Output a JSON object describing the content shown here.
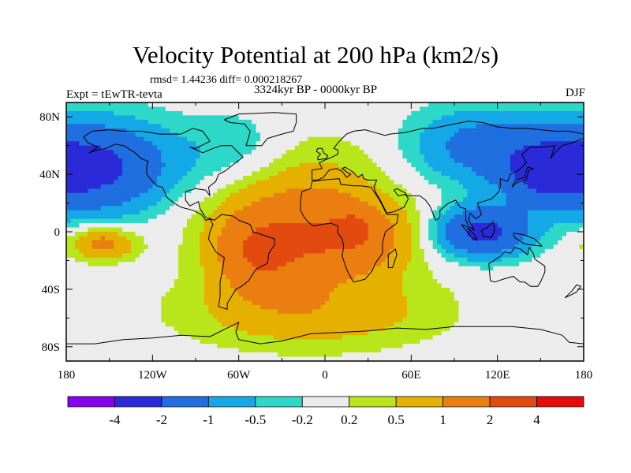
{
  "title": "Velocity Potential at 200 hPa (km2/s)",
  "stats": "rmsd= 1.44236 diff= 0.000218267",
  "period": "3324kyr BP - 0000kyr BP",
  "experiment": "Expt = tEwTR-tevta",
  "season": "DJF",
  "map": {
    "lon_range": [
      -180,
      180
    ],
    "lat_range": [
      -90,
      90
    ],
    "lat_ticks": [
      {
        "lat": 80,
        "label": "80N"
      },
      {
        "lat": 40,
        "label": "40N"
      },
      {
        "lat": 0,
        "label": "0"
      },
      {
        "lat": -40,
        "label": "40S"
      },
      {
        "lat": -80,
        "label": "80S"
      }
    ],
    "lon_ticks": [
      {
        "lon": -180,
        "label": "180"
      },
      {
        "lon": -120,
        "label": "120W"
      },
      {
        "lon": -60,
        "label": "60W"
      },
      {
        "lon": 0,
        "label": "0"
      },
      {
        "lon": 60,
        "label": "60E"
      },
      {
        "lon": 120,
        "label": "120E"
      },
      {
        "lon": 180,
        "label": "180"
      }
    ],
    "field_centers": [
      {
        "lon": -165,
        "lat": 45,
        "sx": 40,
        "sy": 22,
        "amp": -2.4
      },
      {
        "lon": 105,
        "lat": 60,
        "sx": 32,
        "sy": 18,
        "amp": -1.2
      },
      {
        "lon": 155,
        "lat": 42,
        "sx": 22,
        "sy": 14,
        "amp": -1.6
      },
      {
        "lon": 110,
        "lat": 0,
        "sx": 22,
        "sy": 12,
        "amp": -2.3
      },
      {
        "lon": -60,
        "lat": 55,
        "sx": 28,
        "sy": 20,
        "amp": -0.6
      },
      {
        "lon": -155,
        "lat": -8,
        "sx": 16,
        "sy": 8,
        "amp": 1.3
      },
      {
        "lon": -25,
        "lat": 20,
        "sx": 45,
        "sy": 30,
        "amp": 1.0
      },
      {
        "lon": 15,
        "lat": -5,
        "sx": 30,
        "sy": 18,
        "amp": 1.6
      },
      {
        "lon": -45,
        "lat": -15,
        "sx": 22,
        "sy": 18,
        "amp": 1.7
      },
      {
        "lon": 20,
        "lat": 2,
        "sx": 6,
        "sy": 5,
        "amp": 1.5
      },
      {
        "lon": -10,
        "lat": -55,
        "sx": 60,
        "sy": 18,
        "amp": 0.9
      }
    ]
  },
  "colorbar": {
    "colors": [
      "#8800ee",
      "#2a2ad8",
      "#1f6fe0",
      "#14a9e6",
      "#2dd8c8",
      "#ececec",
      "#b8e61a",
      "#e6b000",
      "#ea7e10",
      "#e24a10",
      "#e60a0a"
    ],
    "labels": [
      "-4",
      "-2",
      "-1",
      "-0.5",
      "-0.2",
      "0.2",
      "0.5",
      "1",
      "2",
      "4"
    ],
    "levels": [
      -4,
      -2,
      -1,
      -0.5,
      -0.2,
      0.2,
      0.5,
      1,
      2,
      4
    ]
  }
}
